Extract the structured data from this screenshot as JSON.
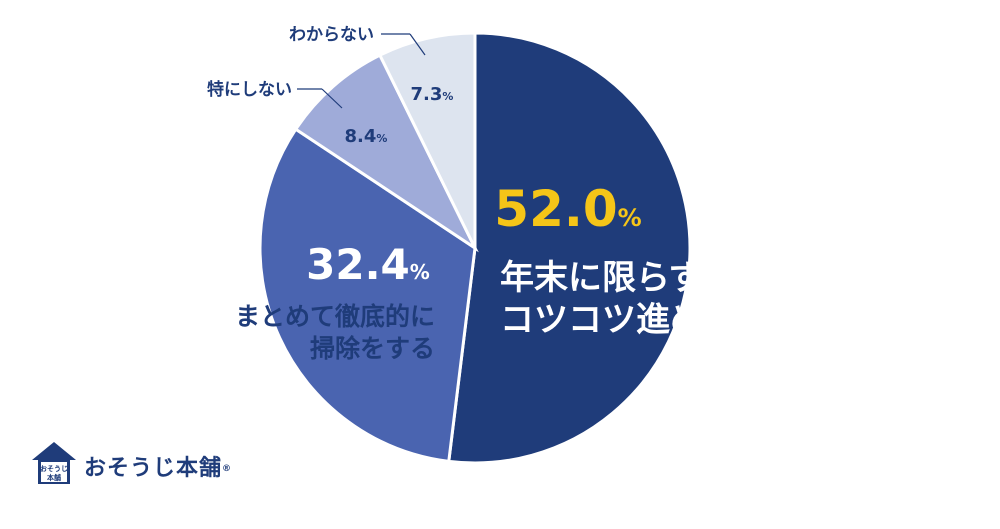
{
  "chart_data": {
    "type": "pie",
    "slices": [
      {
        "label": "年末に限らず コツコツ進める",
        "value": 52.0,
        "value_text": "52.0",
        "color": "#1f3c7a"
      },
      {
        "label": "まとめて徹底的に 掃除をする",
        "value": 32.4,
        "value_text": "32.4",
        "color": "#4a64b0"
      },
      {
        "label": "特にしない",
        "value": 8.4,
        "value_text": "8.4",
        "color": "#9fabd9"
      },
      {
        "label": "わからない",
        "value": 7.3,
        "value_text": "7.3",
        "color": "#dde4ef"
      }
    ],
    "percent_sign": "%",
    "start": "12 o'clock, clockwise",
    "highlight_color": "#f5c518"
  },
  "logo": {
    "text": "おそうじ本舗",
    "reg": "®",
    "badge_top": "おそうじ",
    "badge_bottom": "本舗"
  }
}
